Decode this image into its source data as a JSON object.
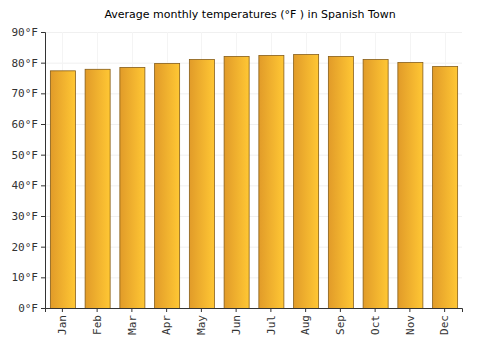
{
  "chart_data": {
    "type": "bar",
    "title": "Average monthly temperatures (°F ) in Spanish Town",
    "categories": [
      "Jan",
      "Feb",
      "Mar",
      "Apr",
      "May",
      "Jun",
      "Jul",
      "Aug",
      "Sep",
      "Oct",
      "Nov",
      "Dec"
    ],
    "values": [
      77.5,
      78,
      78.6,
      79.9,
      81.2,
      82.2,
      82.5,
      82.8,
      82.2,
      81.2,
      80.2,
      78.9
    ],
    "color": "#ffb02e",
    "ylim": [
      0,
      90
    ],
    "yticks": [
      {
        "value": 0,
        "label": "0°F"
      },
      {
        "value": 10,
        "label": "10°F"
      },
      {
        "value": 20,
        "label": "20°F"
      },
      {
        "value": 30,
        "label": "30°F"
      },
      {
        "value": 40,
        "label": "40°F"
      },
      {
        "value": 50,
        "label": "50°F"
      },
      {
        "value": 60,
        "label": "60°F"
      },
      {
        "value": 70,
        "label": "70°F"
      },
      {
        "value": 80,
        "label": "80°F"
      },
      {
        "value": 90,
        "label": "90°F"
      }
    ],
    "grid": true
  }
}
